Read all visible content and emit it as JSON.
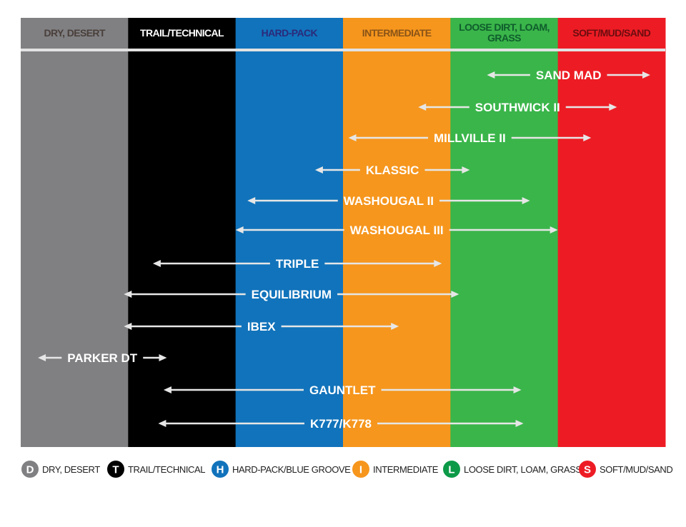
{
  "chart_data": {
    "type": "bar",
    "orientation": "horizontal-range",
    "categories": [
      "DRY, DESERT",
      "TRAIL/TECHNICAL",
      "HARD-PACK",
      "INTERMEDIATE",
      "LOOSE DIRT, LOAM, GRASS",
      "SOFT/MUD/SAND"
    ],
    "header_lines": [
      [
        "DRY, DESERT"
      ],
      [
        "TRAIL/TECHNICAL"
      ],
      [
        "HARD-PACK"
      ],
      [
        "INTERMEDIATE"
      ],
      [
        "LOOSE DIRT, LOAM,",
        "GRASS"
      ],
      [
        "SOFT/MUD/SAND"
      ]
    ],
    "category_colors": [
      "#808083",
      "#000000",
      "#1173bb",
      "#f6961d",
      "#3ab54a",
      "#ed1c24"
    ],
    "header_text_colors": [
      "#4a3f3a",
      "#ffffff",
      "#2b2a7a",
      "#8a5417",
      "#0f5d2c",
      "#6b0d10"
    ],
    "x_range_note": "columns",
    "xlim": [
      0,
      6
    ],
    "series": [
      {
        "name": "SAND MAD",
        "range": [
          4.34,
          5.86
        ]
      },
      {
        "name": "SOUTHWICK II",
        "range": [
          3.7,
          5.55
        ]
      },
      {
        "name": "MILLVILLE II",
        "range": [
          3.05,
          5.31
        ]
      },
      {
        "name": "KLASSIC",
        "range": [
          2.74,
          4.18
        ]
      },
      {
        "name": "WASHOUGAL II",
        "range": [
          2.11,
          4.74
        ]
      },
      {
        "name": "WASHOUGAL III",
        "range": [
          2.0,
          5.0
        ]
      },
      {
        "name": "TRIPLE",
        "range": [
          1.23,
          3.92
        ]
      },
      {
        "name": "EQUILIBRIUM",
        "range": [
          0.96,
          4.08
        ]
      },
      {
        "name": "IBEX",
        "range": [
          0.96,
          3.52
        ]
      },
      {
        "name": "PARKER DT",
        "range": [
          0.16,
          1.36
        ]
      },
      {
        "name": "GAUNTLET",
        "range": [
          1.33,
          4.66
        ]
      },
      {
        "name": "K777/K778",
        "range": [
          1.28,
          4.68
        ]
      }
    ],
    "legend": {
      "placement": "bottom",
      "items": [
        {
          "letter": "D",
          "label": "DRY, DESERT",
          "color": "#808083"
        },
        {
          "letter": "T",
          "label": "TRAIL/TECHNICAL",
          "color": "#000000"
        },
        {
          "letter": "H",
          "label": "HARD-PACK/BLUE GROOVE",
          "color": "#1173bb"
        },
        {
          "letter": "I",
          "label": "INTERMEDIATE",
          "color": "#f6961d"
        },
        {
          "letter": "L",
          "label": "LOOSE DIRT, LOAM, GRASS",
          "color": "#0c9a48"
        },
        {
          "letter": "S",
          "label": "SOFT/MUD/SAND",
          "color": "#ed1c24"
        }
      ]
    },
    "arrow_color": "#e6e6e6"
  }
}
